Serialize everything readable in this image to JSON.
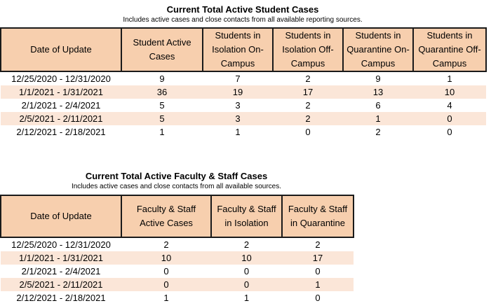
{
  "student_section": {
    "title": "Current Total Active Student Cases",
    "subtitle": "Includes active cases and close contacts from all available reporting sources.",
    "headers": [
      "Date of Update",
      "Student Active Cases",
      "Students in Isolation On-Campus",
      "Students in Isolation Off-Campus",
      "Students in Quarantine On-Campus",
      "Students in Quarantine Off-Campus"
    ],
    "rows": [
      [
        "12/25/2020 - 12/31/2020",
        "9",
        "7",
        "2",
        "9",
        "1"
      ],
      [
        "1/1/2021 - 1/31/2021",
        "36",
        "19",
        "17",
        "13",
        "10"
      ],
      [
        "2/1/2021 - 2/4/2021",
        "5",
        "3",
        "2",
        "6",
        "4"
      ],
      [
        "2/5/2021 - 2/11/2021",
        "5",
        "3",
        "2",
        "1",
        "0"
      ],
      [
        "2/12/2021 - 2/18/2021",
        "1",
        "1",
        "0",
        "2",
        "0"
      ]
    ]
  },
  "staff_section": {
    "title": "Current Total Active Faculty & Staff Cases",
    "subtitle": "Includes active cases and close contacts from all available sources.",
    "headers": [
      "Date of Update",
      "Faculty & Staff Active Cases",
      "Faculty & Staff in Isolation",
      "Faculty & Staff in Quarantine"
    ],
    "rows": [
      [
        "12/25/2020 - 12/31/2020",
        "2",
        "2",
        "2"
      ],
      [
        "1/1/2021 - 1/31/2021",
        "10",
        "10",
        "17"
      ],
      [
        "2/1/2021 - 2/4/2021",
        "0",
        "0",
        "0"
      ],
      [
        "2/5/2021 - 2/11/2021",
        "0",
        "0",
        "1"
      ],
      [
        "2/12/2021 - 2/18/2021",
        "1",
        "1",
        "0"
      ]
    ]
  },
  "colors": {
    "header_fill": "#f7cfae",
    "alt_row_fill": "#fbe6d8",
    "border": "#1a1a1a"
  }
}
